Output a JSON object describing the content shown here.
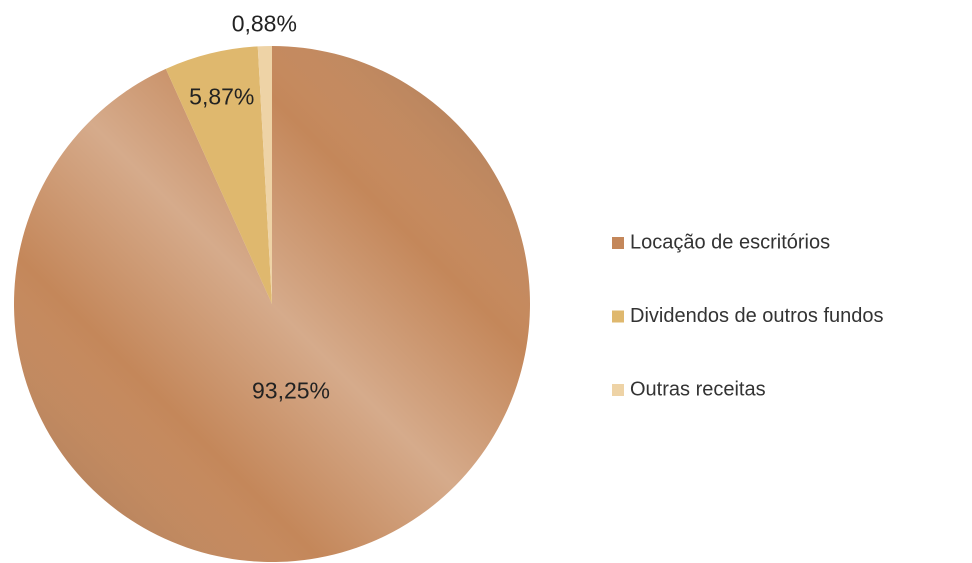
{
  "chart_data": {
    "type": "pie",
    "categories": [
      "Locação de escritórios",
      "Dividendos de outros fundos",
      "Outras receitas"
    ],
    "values": [
      93.25,
      5.87,
      0.88
    ],
    "value_labels": [
      "93,25%",
      "5,87%",
      "0,88%"
    ],
    "colors": [
      "#c4875a",
      "#dfb86e",
      "#eed3a6"
    ],
    "legend": "right"
  }
}
